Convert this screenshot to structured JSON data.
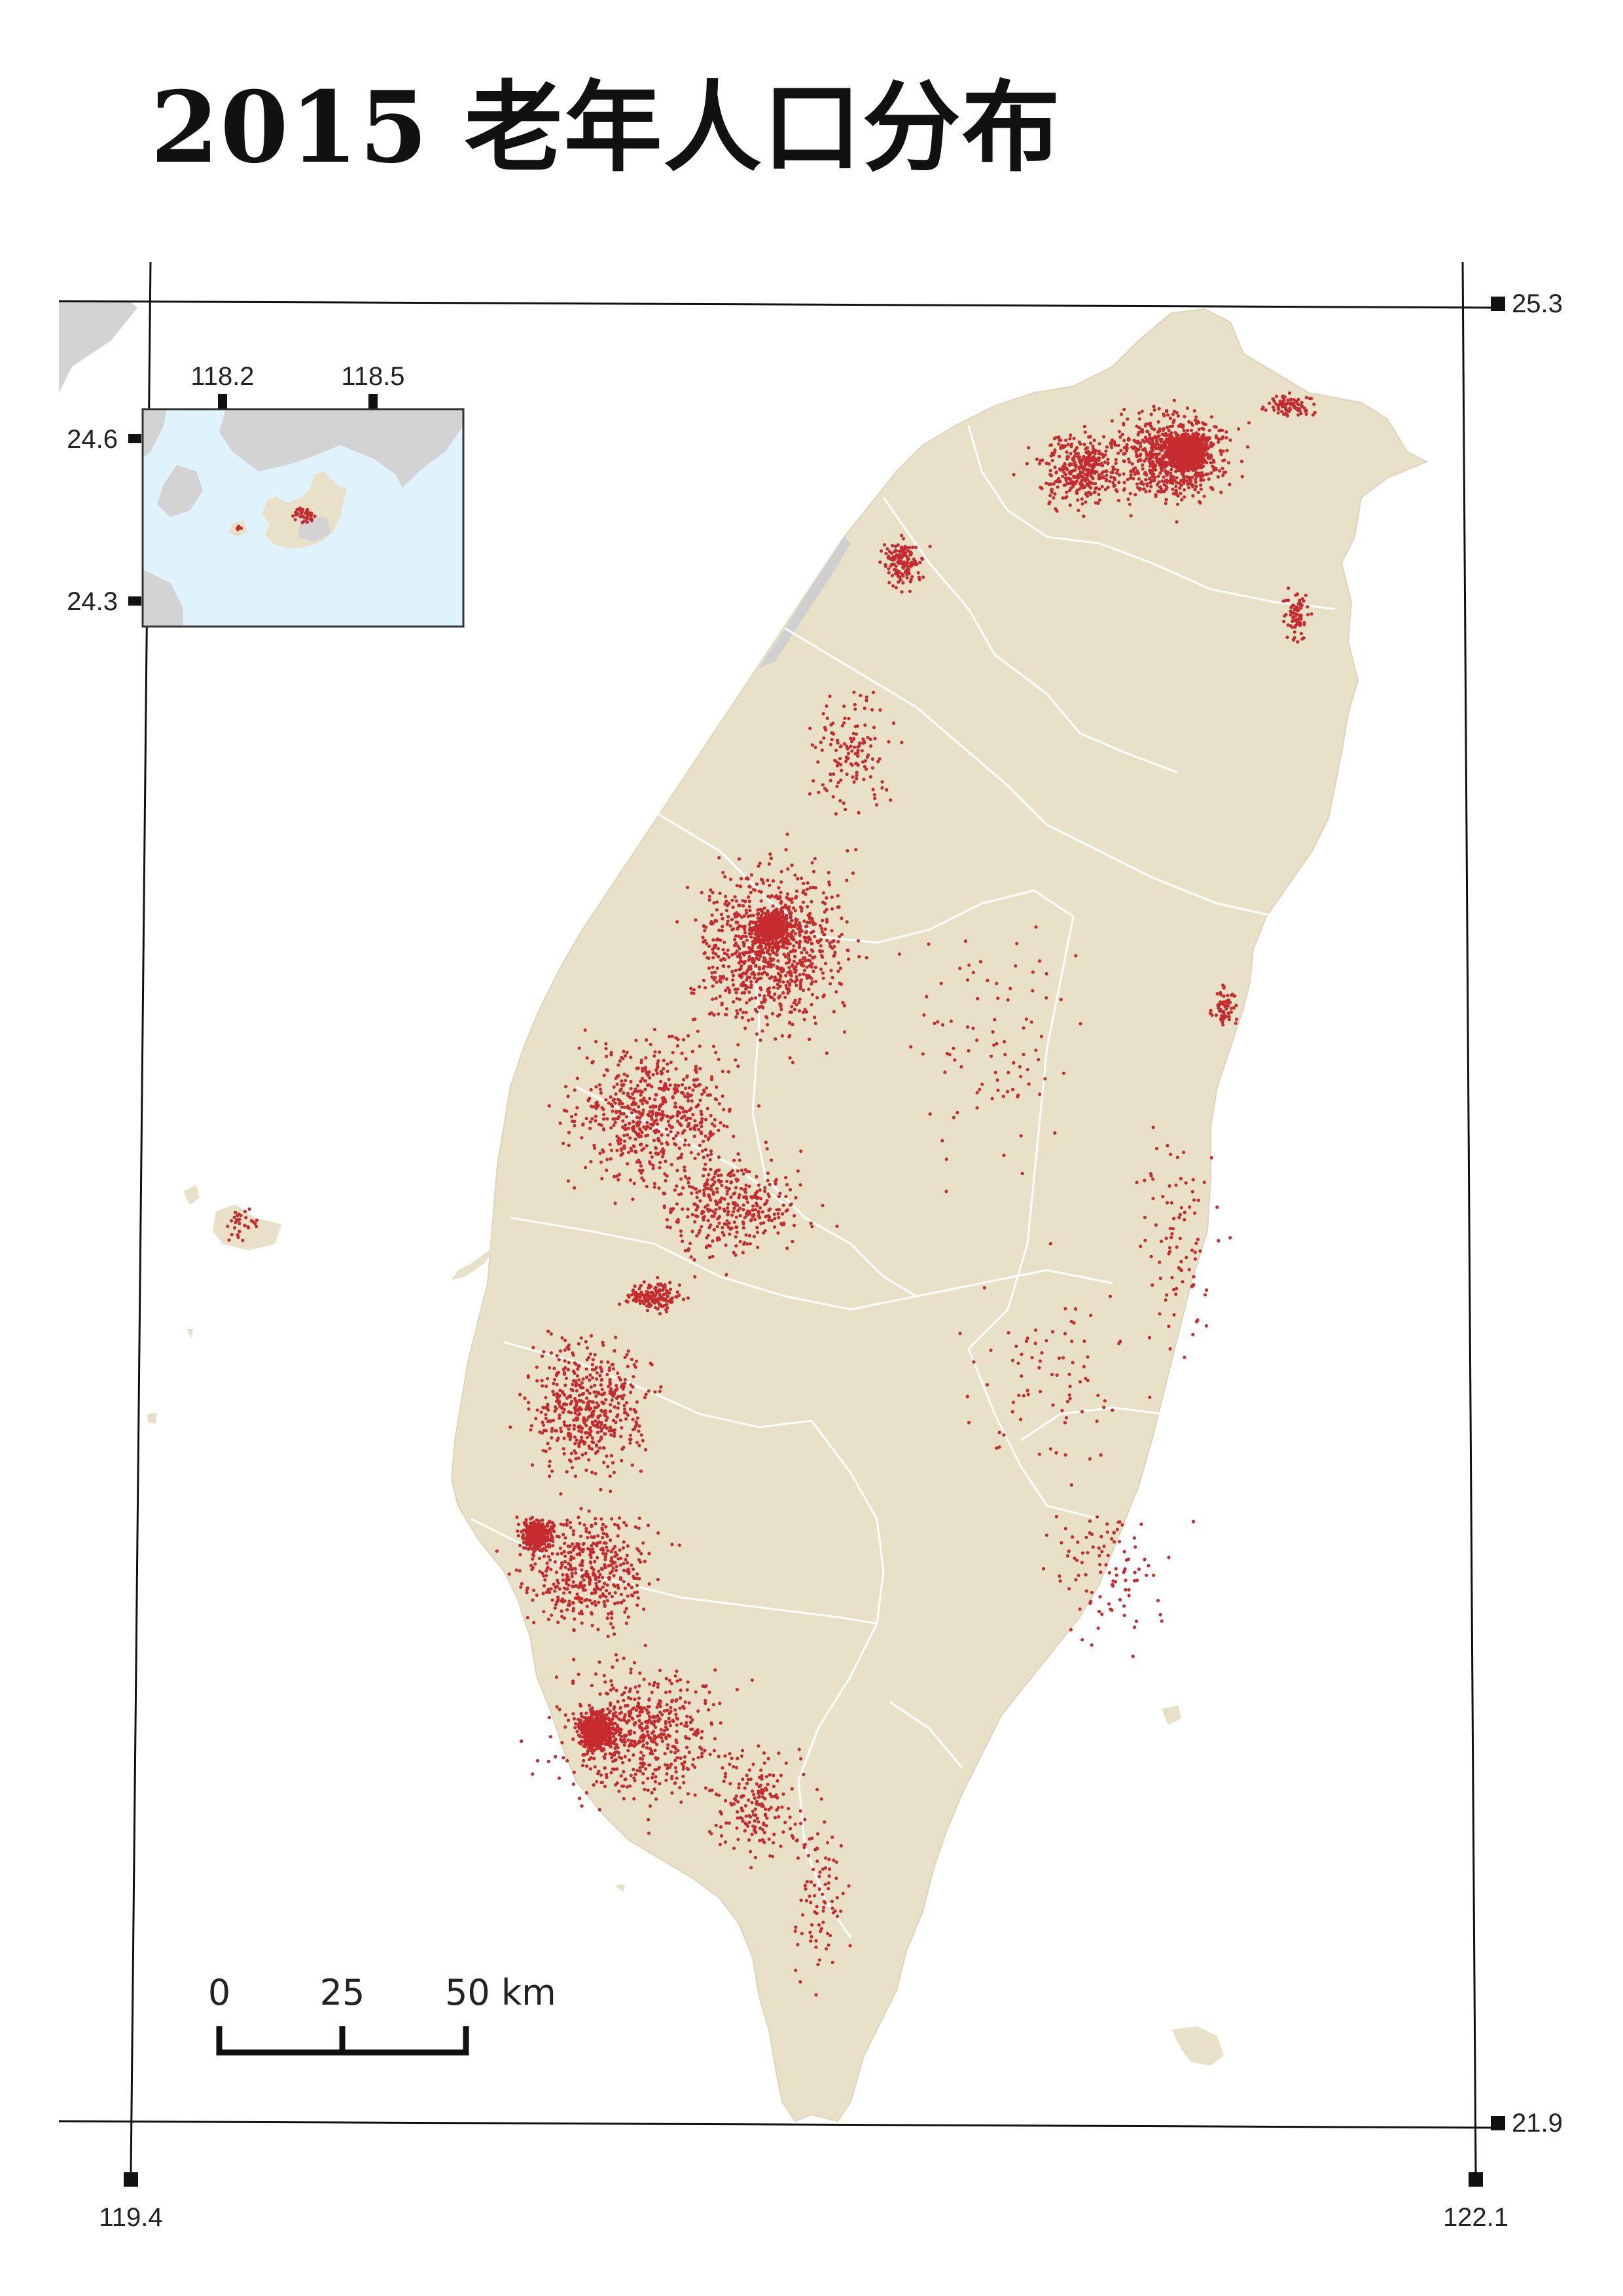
{
  "title": "2015 老年人口分布",
  "map": {
    "main_ticks": {
      "lat_top": "25.3",
      "lat_bottom": "21.9",
      "lon_left": "119.4",
      "lon_right": "122.1"
    },
    "inset_ticks": {
      "lon_a": "118.2",
      "lon_b": "118.5",
      "lat_a": "24.6",
      "lat_b": "24.3"
    },
    "scale_bar": {
      "label_0": "0",
      "label_25": "25",
      "label_50": "50 km"
    },
    "colors": {
      "land": "#e8e0c7",
      "neighbor_land": "#d3d3d3",
      "sea_inset": "#e0f2fb",
      "dots": "#c62b2f",
      "boundaries": "#ffffff"
    }
  }
}
